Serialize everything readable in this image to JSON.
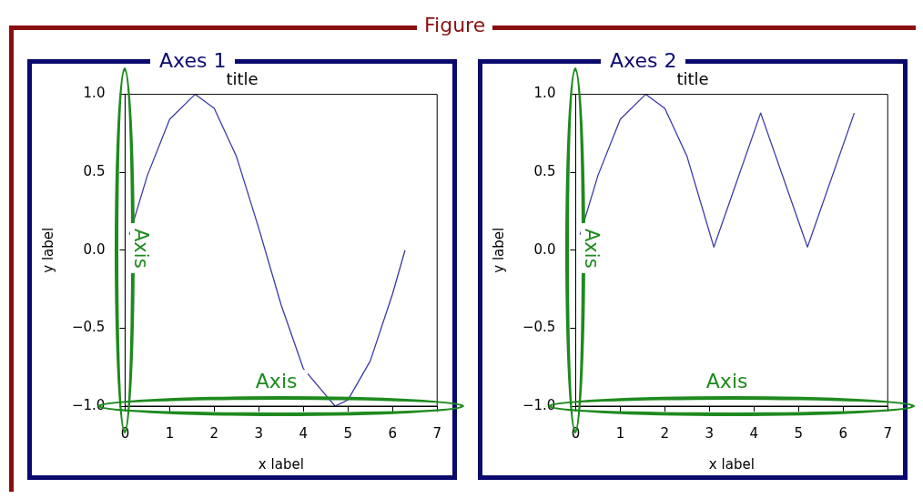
{
  "chart_data": [
    {
      "type": "line",
      "title": "title",
      "xlabel": "x label",
      "ylabel": "y label",
      "xlim": [
        0,
        7
      ],
      "ylim": [
        -1,
        1
      ],
      "xticks": [
        0,
        1,
        2,
        3,
        4,
        5,
        6,
        7
      ],
      "yticks": [
        {
          "value": -1,
          "label": "−1.0"
        },
        {
          "value": -0.5,
          "label": "−0.5"
        },
        {
          "value": 0,
          "label": "0.0"
        },
        {
          "value": 0.5,
          "label": "0.5"
        },
        {
          "value": 1,
          "label": "1.0"
        }
      ],
      "x": [
        0.1,
        0.5,
        1.0,
        1.57,
        2.0,
        2.5,
        3.0,
        3.5,
        4.0,
        4.71,
        5.0,
        5.5,
        6.0,
        6.28
      ],
      "series": [
        {
          "color": "#3a3aa8",
          "values": [
            0.1,
            0.48,
            0.84,
            1.0,
            0.91,
            0.6,
            0.14,
            -0.35,
            -0.76,
            -1.0,
            -0.96,
            -0.71,
            -0.28,
            0.0
          ]
        }
      ],
      "annotations": [
        "Figure",
        "Axes 1",
        "Axis",
        "Axis"
      ]
    },
    {
      "type": "line",
      "title": "title",
      "xlabel": "x label",
      "ylabel": "y label",
      "xlim": [
        0,
        7
      ],
      "ylim": [
        -1,
        1
      ],
      "xticks": [
        0,
        1,
        2,
        3,
        4,
        5,
        6,
        7
      ],
      "yticks": [
        {
          "value": -1,
          "label": "−1.0"
        },
        {
          "value": -0.5,
          "label": "−0.5"
        },
        {
          "value": 0,
          "label": "0.0"
        },
        {
          "value": 0.5,
          "label": "0.5"
        },
        {
          "value": 1,
          "label": "1.0"
        }
      ],
      "x": [
        0.1,
        0.5,
        1.0,
        1.57,
        2.0,
        2.5,
        3.1,
        4.15,
        5.2,
        6.25
      ],
      "series": [
        {
          "color": "#3a3aa8",
          "values": [
            0.1,
            0.48,
            0.84,
            1.0,
            0.91,
            0.6,
            0.02,
            0.88,
            0.02,
            0.88
          ]
        }
      ],
      "annotations": [
        "Axes 2",
        "Axis",
        "Axis"
      ]
    }
  ]
}
